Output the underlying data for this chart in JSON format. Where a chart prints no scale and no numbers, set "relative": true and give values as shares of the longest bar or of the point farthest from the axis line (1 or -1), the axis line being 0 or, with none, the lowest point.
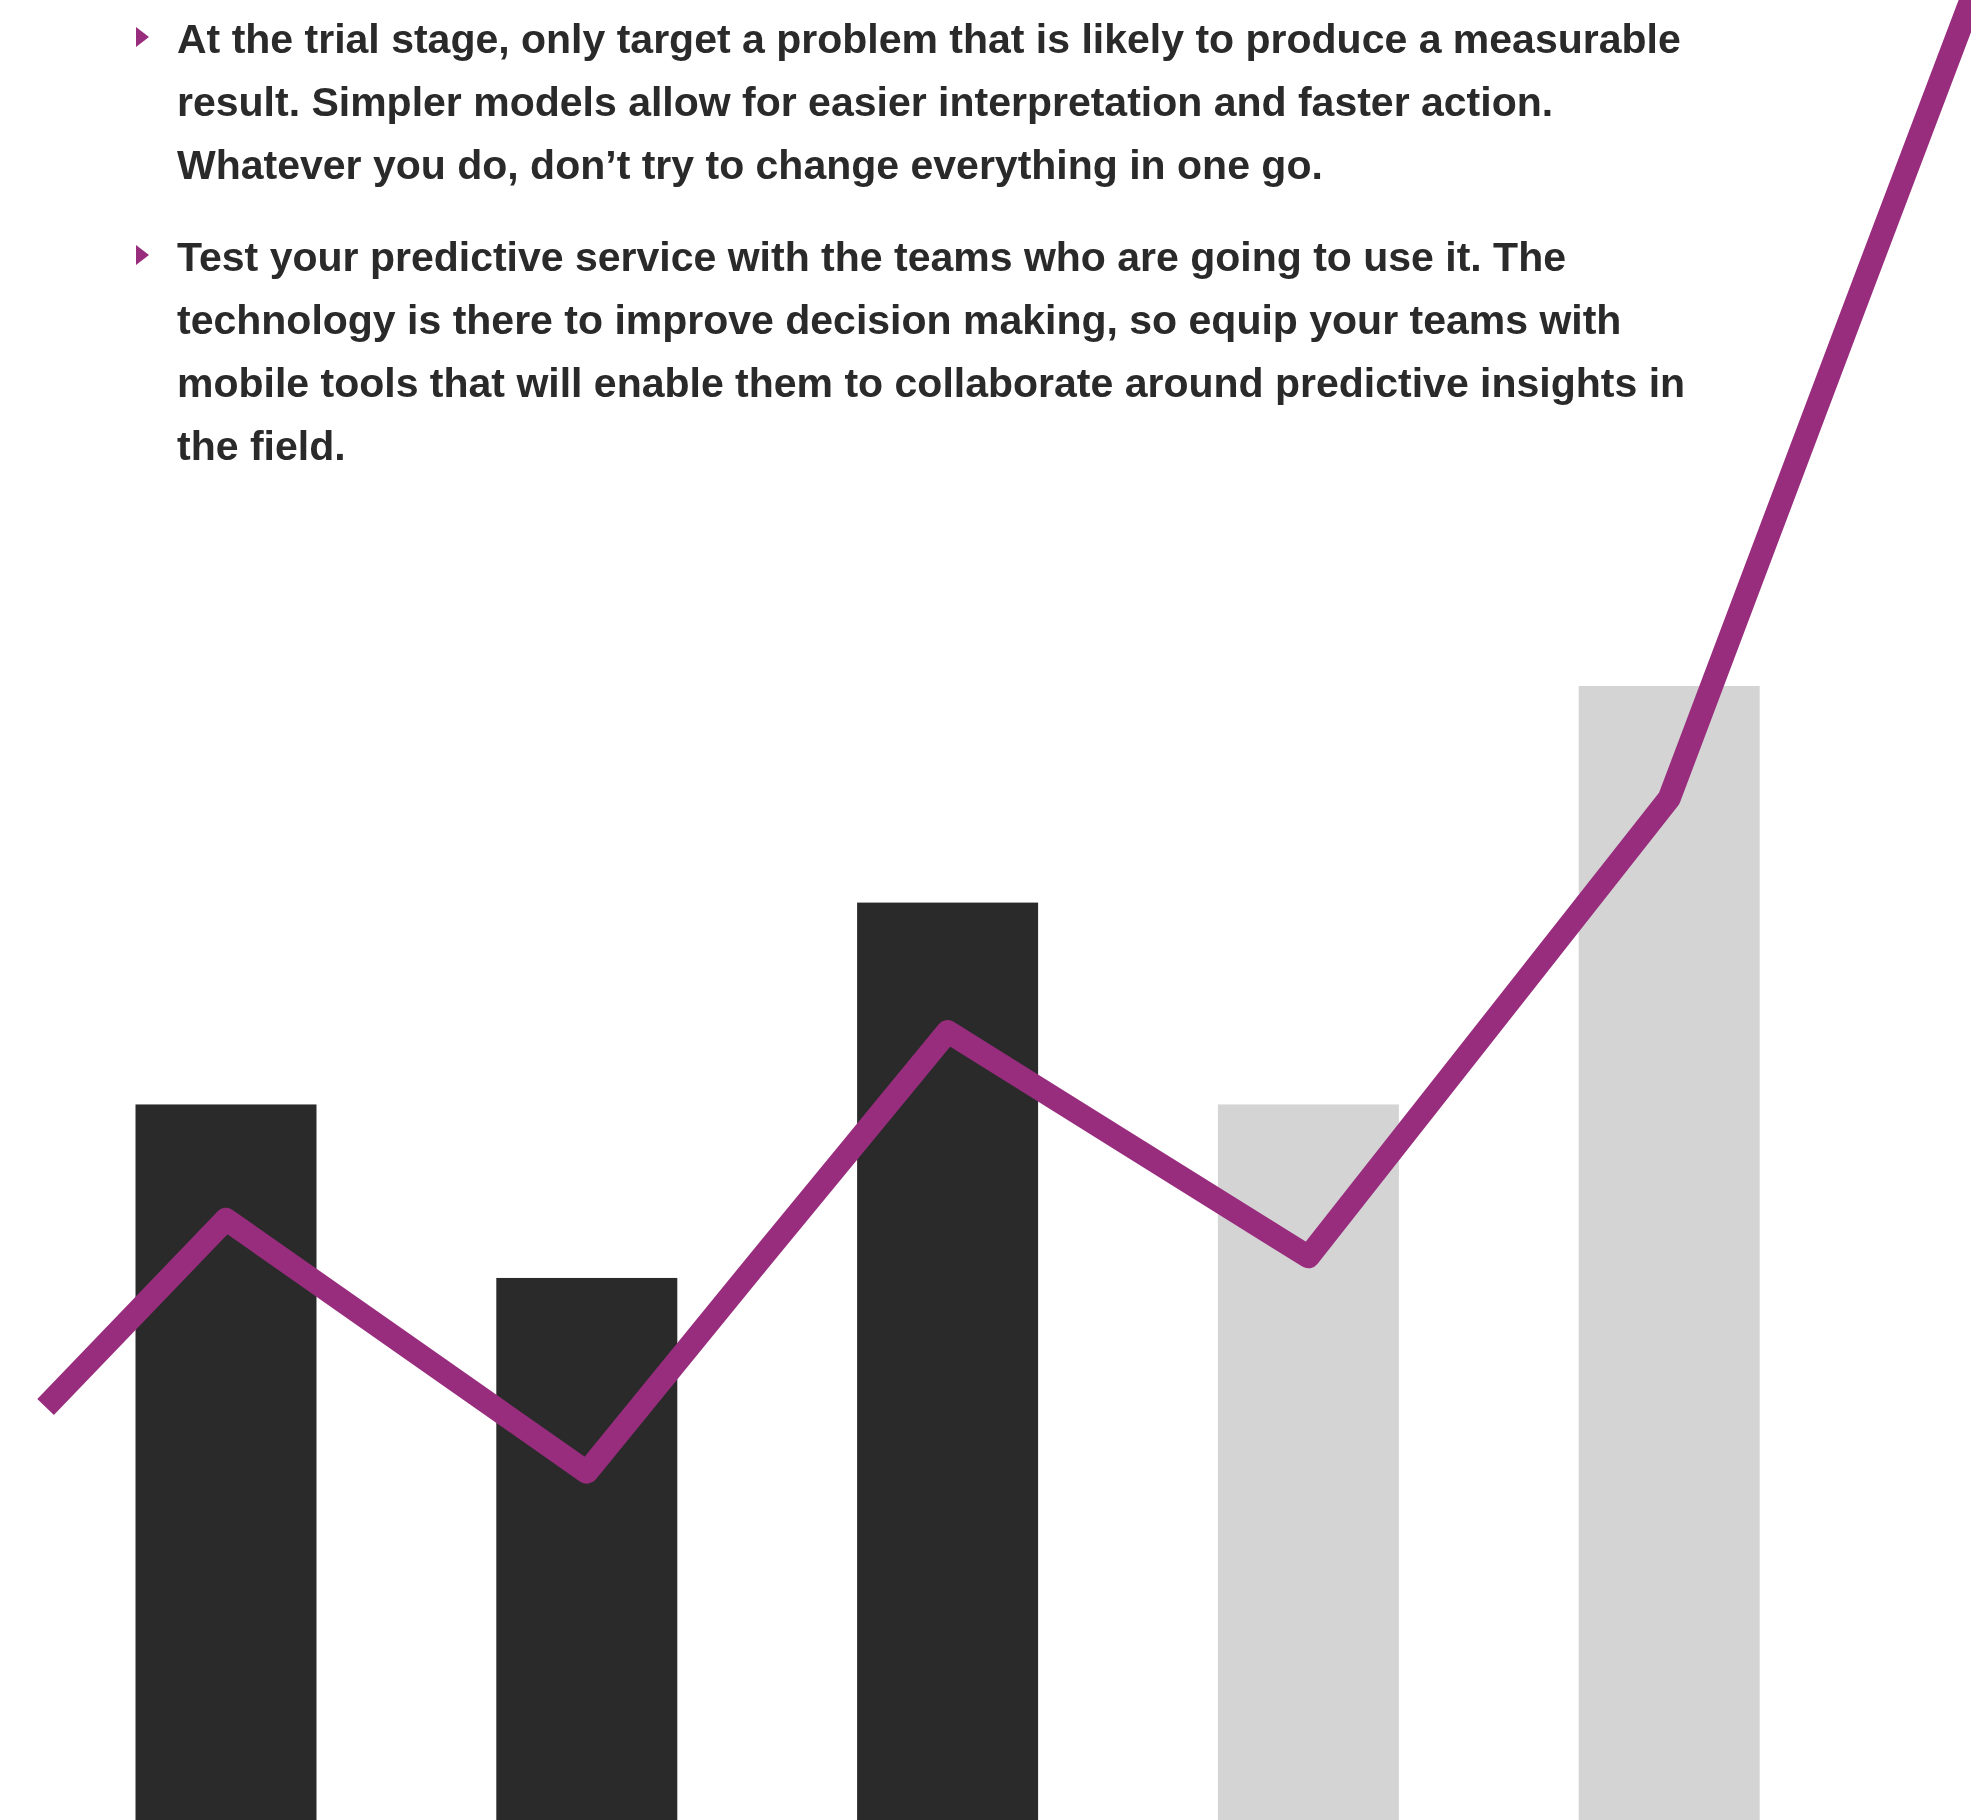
{
  "chart_data": [
    {
      "type": "bar",
      "relative": true,
      "categories": [
        null,
        null,
        null,
        null,
        null
      ],
      "colors": [
        "#2a2a2a",
        "#2a2a2a",
        "#2a2a2a",
        "#d4d4d4",
        "#d4d4d4"
      ],
      "values": [
        0.631,
        0.478,
        0.809,
        0.631,
        1
      ],
      "annotations": [
        "At the trial stage, only target a problem that is likely to produce a measurable result. Simpler models allow for easier interpretation and faster action. Whatever you do, don’t try to change everything in one go.",
        "Test your predictive service with the teams who are going to use it. The technology is there to improve decision making, so equip your teams with mobile tools that will enable them to collaborate around predictive insights in the field."
      ]
    },
    {
      "type": "line",
      "relative": true,
      "categories": [
        null,
        null,
        null,
        null,
        null,
        null,
        null,
        null,
        null,
        null,
        null,
        null
      ],
      "color": "#982d7e",
      "values": [
        0.209,
        0.304,
        0.24,
        0.176,
        0.288,
        0.399,
        0.342,
        0.285,
        0.401,
        0.517,
        0.759,
        1
      ]
    }
  ]
}
